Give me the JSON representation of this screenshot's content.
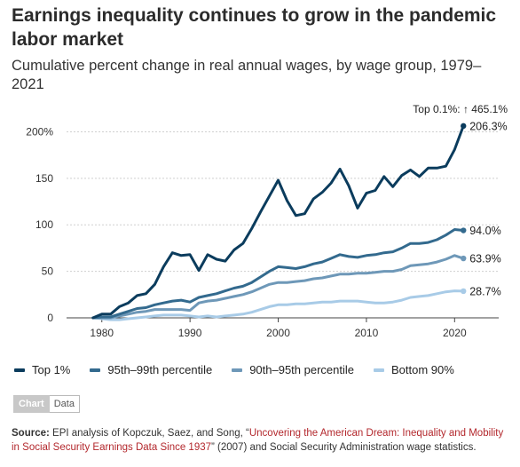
{
  "title": "Earnings inequality continues to grow in the pandemic labor market",
  "subtitle": "Cumulative percent change in real annual wages, by wage group, 1979–2021",
  "chart_data": {
    "type": "line",
    "x": [
      1979,
      1980,
      1981,
      1982,
      1983,
      1984,
      1985,
      1986,
      1987,
      1988,
      1989,
      1990,
      1991,
      1992,
      1993,
      1994,
      1995,
      1996,
      1997,
      1998,
      1999,
      2000,
      2001,
      2002,
      2003,
      2004,
      2005,
      2006,
      2007,
      2008,
      2009,
      2010,
      2011,
      2012,
      2013,
      2014,
      2015,
      2016,
      2017,
      2018,
      2019,
      2020,
      2021
    ],
    "xticks": [
      "1980",
      "1990",
      "2000",
      "2010",
      "2020"
    ],
    "yticks": [
      "0",
      "50",
      "100",
      "150",
      "200%"
    ],
    "ytick_values": [
      0,
      50,
      100,
      150,
      200
    ],
    "ylim": [
      0,
      210
    ],
    "xlim": [
      1976,
      2025
    ],
    "grid": true,
    "legend_position": "bottom",
    "series": [
      {
        "name": "Top 1%",
        "color": "#0b3c5d",
        "end_label": "206.3%",
        "values": [
          0,
          4,
          4,
          12,
          16,
          24,
          26,
          36,
          55,
          70,
          67,
          68,
          51,
          68,
          63,
          61,
          73,
          80,
          96,
          114,
          131,
          148,
          126,
          110,
          112,
          128,
          135,
          145,
          160,
          142,
          118,
          134,
          137,
          152,
          141,
          153,
          159,
          152,
          161,
          161,
          163,
          181,
          206.3
        ]
      },
      {
        "name": "95th–99th percentile",
        "color": "#336a8e",
        "end_label": "94.0%",
        "values": [
          0,
          1,
          1,
          4,
          7,
          10,
          11,
          14,
          16,
          18,
          19,
          17,
          22,
          24,
          26,
          29,
          32,
          34,
          38,
          44,
          50,
          55,
          54,
          53,
          55,
          58,
          60,
          64,
          68,
          66,
          65,
          67,
          68,
          70,
          71,
          75,
          80,
          80,
          81,
          84,
          89,
          95,
          94.0
        ]
      },
      {
        "name": "90th–95th percentile",
        "color": "#6e98b8",
        "end_label": "63.9%",
        "values": [
          0,
          0,
          0,
          2,
          4,
          6,
          7,
          9,
          9,
          9,
          9,
          8,
          16,
          18,
          19,
          21,
          23,
          25,
          28,
          32,
          36,
          38,
          38,
          39,
          40,
          42,
          43,
          45,
          47,
          47,
          48,
          48,
          49,
          50,
          50,
          52,
          56,
          57,
          58,
          60,
          63,
          67,
          63.9
        ]
      },
      {
        "name": "Bottom 90%",
        "color": "#a8cbe7",
        "end_label": "28.7%",
        "values": [
          0,
          -1,
          -2,
          -2,
          -1,
          0,
          1,
          2,
          3,
          3,
          3,
          2,
          1,
          2,
          1,
          2,
          3,
          4,
          6,
          9,
          12,
          14,
          14,
          15,
          15,
          16,
          17,
          17,
          18,
          18,
          18,
          17,
          16,
          16,
          17,
          19,
          22,
          23,
          24,
          26,
          28,
          29,
          28.7
        ]
      }
    ],
    "annotation": "Top 0.1%: ↑ 465.1%"
  },
  "tabs": {
    "chart": "Chart",
    "data": "Data"
  },
  "source": {
    "label": "Source:",
    "text1": " EPI analysis of Kopczuk, Saez, and Song, “",
    "link": "Uncovering the American Dream: Inequality and Mobility in Social Security Earnings Data Since 1937",
    "text2": "” (2007) and Social Security Administration wage statistics."
  }
}
